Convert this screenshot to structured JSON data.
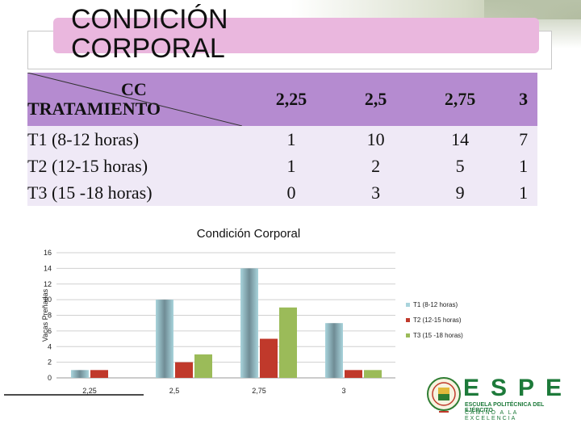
{
  "slide": {
    "title": "CONDICIÓN\nCORPORAL"
  },
  "table": {
    "header_cc": "CC",
    "header_treatment": "TRATAMIENTO",
    "columns": [
      "2,25",
      "2,5",
      "2,75",
      "3"
    ],
    "rows": [
      {
        "label": "T1 (8-12 horas)",
        "values": [
          "1",
          "10",
          "14",
          "7"
        ]
      },
      {
        "label": "T2 (12-15 horas)",
        "values": [
          "1",
          "2",
          "5",
          "1"
        ]
      },
      {
        "label": "T3 (15 -18 horas)",
        "values": [
          "0",
          "3",
          "9",
          "1"
        ]
      }
    ]
  },
  "chart_data": {
    "type": "bar",
    "title": "Condición Corporal",
    "ylabel": "Vacas Preñadas",
    "xlabel": "",
    "categories": [
      "2,25",
      "2,5",
      "2,75",
      "3"
    ],
    "series": [
      {
        "name": "T1 (8-12 horas)",
        "values": [
          1,
          10,
          14,
          7
        ],
        "color": "#a9d4dc"
      },
      {
        "name": "T2 (12-15 horas)",
        "values": [
          1,
          2,
          5,
          1
        ],
        "color": "#c0392b"
      },
      {
        "name": "T3 (15 -18 horas)",
        "values": [
          0,
          3,
          9,
          1
        ],
        "color": "#9bbb59"
      }
    ],
    "ylim": [
      0,
      16
    ],
    "yticks": [
      0,
      2,
      4,
      6,
      8,
      10,
      12,
      14,
      16
    ],
    "grid": true,
    "legend": "right"
  },
  "logo": {
    "letters": "ESPE",
    "line1": "ESCUELA POLITÉCNICA DEL EJÉRCITO",
    "line2": "CAMINO A LA EXCELENCIA"
  }
}
